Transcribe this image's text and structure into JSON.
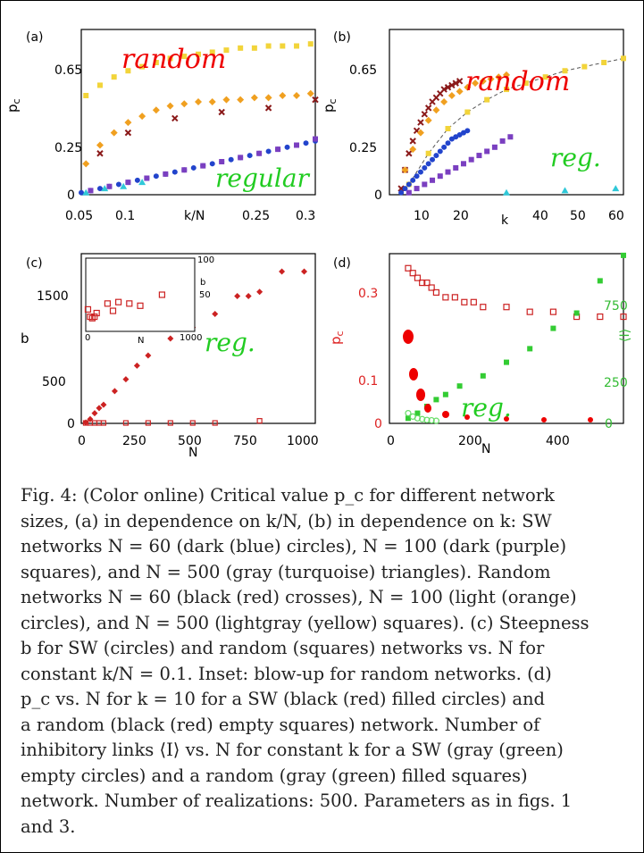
{
  "figure": {
    "panels": {
      "a": {
        "label": "(a)",
        "ylabel": "p",
        "ylabel_sub": "c",
        "xlabel": "k/N",
        "yticks": [
          "0.65",
          "0.25",
          "0"
        ],
        "xticks": [
          "0.05",
          "0.1",
          "0.25",
          "0.3"
        ]
      },
      "b": {
        "label": "(b)",
        "ylabel": "p",
        "ylabel_sub": "c",
        "xlabel": "k",
        "yticks": [
          "0.65",
          "0.25",
          "0"
        ],
        "xticks": [
          "10",
          "20",
          "40",
          "50",
          "60"
        ]
      },
      "c": {
        "label": "(c)",
        "ylabel": "b",
        "xlabel": "N",
        "yticks": [
          "1500",
          "500",
          "0"
        ],
        "xticks": [
          "0",
          "250",
          "500",
          "750",
          "1000"
        ],
        "inset": {
          "xlabel": "N",
          "ylabel": "b",
          "yticks": [
            "100",
            "50",
            "0"
          ],
          "xticks": [
            "0",
            "1000"
          ]
        }
      },
      "d": {
        "label": "(d)",
        "ylabel": "p",
        "ylabel_sub": "c",
        "y2label": "⟨I⟩",
        "xlabel": "N",
        "yticks": [
          "0.3",
          "0.1",
          "0"
        ],
        "y2ticks": [
          "750",
          "250",
          "0"
        ],
        "xticks": [
          "0",
          "200",
          "400"
        ]
      }
    },
    "annotations": {
      "a_random": "random",
      "a_regular": "regular",
      "b_random": "random",
      "b_reg": "reg.",
      "c_reg": "reg.",
      "d_reg": "reg."
    }
  },
  "chart_data": [
    {
      "panel": "a",
      "type": "scatter",
      "xlabel": "k/N",
      "ylabel": "p_c",
      "xlim": [
        0.05,
        0.3
      ],
      "ylim": [
        0,
        0.8
      ],
      "series": [
        {
          "marker": "square",
          "color": "#f2d43a",
          "x": [
            0.055,
            0.07,
            0.085,
            0.1,
            0.115,
            0.13,
            0.145,
            0.16,
            0.175,
            0.19,
            0.205,
            0.22,
            0.235,
            0.25,
            0.265,
            0.28,
            0.295
          ],
          "y": [
            0.48,
            0.53,
            0.57,
            0.6,
            0.62,
            0.64,
            0.66,
            0.67,
            0.68,
            0.69,
            0.7,
            0.71,
            0.71,
            0.72,
            0.72,
            0.72,
            0.73
          ]
        },
        {
          "marker": "diamond",
          "color": "#f0a020",
          "x": [
            0.055,
            0.07,
            0.085,
            0.1,
            0.115,
            0.13,
            0.145,
            0.16,
            0.175,
            0.19,
            0.205,
            0.22,
            0.235,
            0.25,
            0.265,
            0.28,
            0.295
          ],
          "y": [
            0.15,
            0.24,
            0.3,
            0.35,
            0.38,
            0.41,
            0.43,
            0.44,
            0.45,
            0.45,
            0.46,
            0.46,
            0.47,
            0.47,
            0.48,
            0.48,
            0.49
          ]
        },
        {
          "marker": "cross",
          "color": "#8b1a1a",
          "x": [
            0.07,
            0.1,
            0.15,
            0.2,
            0.25,
            0.3
          ],
          "y": [
            0.2,
            0.3,
            0.37,
            0.4,
            0.42,
            0.46
          ]
        },
        {
          "marker": "circle",
          "color": "#2244cc",
          "x": [
            0.05,
            0.06,
            0.07,
            0.08,
            0.09,
            0.1,
            0.11,
            0.12,
            0.13,
            0.14,
            0.15,
            0.16,
            0.17,
            0.18,
            0.19,
            0.2,
            0.21,
            0.22,
            0.23,
            0.24,
            0.25,
            0.26,
            0.27,
            0.28,
            0.29,
            0.3
          ],
          "y": [
            0.01,
            0.02,
            0.03,
            0.04,
            0.05,
            0.06,
            0.07,
            0.08,
            0.09,
            0.1,
            0.11,
            0.12,
            0.13,
            0.14,
            0.15,
            0.16,
            0.17,
            0.18,
            0.19,
            0.2,
            0.21,
            0.22,
            0.23,
            0.24,
            0.25,
            0.26
          ]
        },
        {
          "marker": "square",
          "color": "#7a3fc0",
          "x": [
            0.06,
            0.08,
            0.1,
            0.12,
            0.14,
            0.16,
            0.18,
            0.2,
            0.22,
            0.24,
            0.26,
            0.28,
            0.3
          ],
          "y": [
            0.02,
            0.04,
            0.06,
            0.08,
            0.1,
            0.12,
            0.14,
            0.16,
            0.18,
            0.2,
            0.22,
            0.24,
            0.27
          ]
        },
        {
          "marker": "triangle",
          "color": "#30c8d8",
          "x": [
            0.055,
            0.075,
            0.095,
            0.115
          ],
          "y": [
            0.01,
            0.03,
            0.04,
            0.06
          ]
        }
      ]
    },
    {
      "panel": "b",
      "type": "scatter",
      "xlabel": "k",
      "ylabel": "p_c",
      "xlim": [
        0,
        60
      ],
      "ylim": [
        0,
        0.8
      ],
      "series": [
        {
          "marker": "cross",
          "color": "#8b1a1a",
          "x": [
            3,
            4,
            5,
            6,
            7,
            8,
            9,
            10,
            11,
            12,
            13,
            14,
            15,
            16,
            17,
            18
          ],
          "y": [
            0.03,
            0.12,
            0.2,
            0.26,
            0.31,
            0.35,
            0.39,
            0.42,
            0.45,
            0.47,
            0.49,
            0.51,
            0.52,
            0.53,
            0.54,
            0.55
          ]
        },
        {
          "marker": "diamond",
          "color": "#f0a020",
          "x": [
            4,
            6,
            8,
            10,
            12,
            14,
            16,
            18,
            20,
            22,
            24,
            26,
            28,
            30
          ],
          "y": [
            0.12,
            0.22,
            0.3,
            0.36,
            0.41,
            0.45,
            0.48,
            0.5,
            0.52,
            0.54,
            0.55,
            0.56,
            0.57,
            0.58
          ]
        },
        {
          "marker": "square",
          "color": "#f2d43a",
          "x": [
            5,
            10,
            15,
            20,
            25,
            30,
            35,
            40,
            45,
            50,
            55,
            60
          ],
          "y": [
            0.05,
            0.2,
            0.32,
            0.4,
            0.46,
            0.51,
            0.54,
            0.57,
            0.6,
            0.62,
            0.64,
            0.66
          ]
        },
        {
          "marker": "circle",
          "color": "#2244cc",
          "x": [
            3,
            4,
            5,
            6,
            7,
            8,
            9,
            10,
            11,
            12,
            13,
            14,
            15,
            16,
            17,
            18,
            19,
            20
          ],
          "y": [
            0.01,
            0.03,
            0.05,
            0.07,
            0.09,
            0.11,
            0.13,
            0.15,
            0.17,
            0.19,
            0.21,
            0.23,
            0.25,
            0.27,
            0.28,
            0.29,
            0.3,
            0.31
          ]
        },
        {
          "marker": "square",
          "color": "#7a3fc0",
          "x": [
            5,
            7,
            9,
            11,
            13,
            15,
            17,
            19,
            21,
            23,
            25,
            27,
            29,
            31
          ],
          "y": [
            0.01,
            0.03,
            0.05,
            0.07,
            0.09,
            0.11,
            0.13,
            0.15,
            0.17,
            0.19,
            0.21,
            0.23,
            0.26,
            0.28
          ]
        },
        {
          "marker": "triangle",
          "color": "#30c8d8",
          "x": [
            30,
            45,
            58
          ],
          "y": [
            0.01,
            0.02,
            0.03
          ]
        }
      ]
    },
    {
      "panel": "c",
      "type": "scatter",
      "xlabel": "N",
      "ylabel": "b",
      "xlim": [
        0,
        1050
      ],
      "ylim": [
        0,
        2000
      ],
      "series": [
        {
          "marker": "diamond",
          "color": "#cc2222",
          "x": [
            20,
            40,
            60,
            80,
            100,
            150,
            200,
            250,
            300,
            400,
            500,
            600,
            700,
            750,
            800,
            900,
            1000
          ],
          "y": [
            10,
            50,
            120,
            180,
            220,
            380,
            520,
            680,
            800,
            1000,
            1130,
            1290,
            1500,
            1500,
            1550,
            1790,
            1790
          ]
        },
        {
          "marker": "open-square",
          "color": "#cc2222",
          "x": [
            20,
            40,
            60,
            80,
            100,
            200,
            300,
            400,
            500,
            600,
            800
          ],
          "y": [
            5,
            5,
            5,
            5,
            5,
            5,
            5,
            5,
            5,
            5,
            30
          ]
        }
      ],
      "inset": {
        "xlim": [
          0,
          1000
        ],
        "ylim": [
          0,
          100
        ],
        "series": [
          {
            "marker": "open-square",
            "color": "#cc2222",
            "x": [
              20,
              40,
              60,
              80,
              100,
              200,
              250,
              300,
              400,
              500,
              700
            ],
            "y": [
              30,
              20,
              18,
              20,
              25,
              38,
              28,
              40,
              38,
              35,
              50
            ]
          }
        ]
      }
    },
    {
      "panel": "d",
      "type": "scatter",
      "xlabel": "N",
      "ylabel": "p_c",
      "y2label": "⟨I⟩",
      "xlim": [
        0,
        500
      ],
      "ylim": [
        0,
        0.35
      ],
      "y2lim": [
        0,
        1000
      ],
      "series": [
        {
          "name": "",
          "axis": "left",
          "marker": "open-square",
          "color": "#cc2222",
          "x": [
            40,
            50,
            60,
            70,
            80,
            90,
            100,
            120,
            140,
            160,
            180,
            200,
            250,
            300,
            350,
            400,
            450,
            500
          ],
          "y": [
            0.32,
            0.31,
            0.3,
            0.29,
            0.29,
            0.28,
            0.27,
            0.26,
            0.26,
            0.25,
            0.25,
            0.24,
            0.24,
            0.23,
            0.23,
            0.22,
            0.22,
            0.22
          ]
        },
        {
          "axis": "right",
          "marker": "square",
          "color": "#33cc33",
          "x": [
            40,
            60,
            80,
            100,
            120,
            150,
            200,
            250,
            300,
            350,
            400,
            450,
            500
          ],
          "y": [
            30,
            60,
            100,
            140,
            170,
            220,
            280,
            360,
            440,
            560,
            650,
            840,
            990
          ]
        },
        {
          "axis": "right",
          "marker": "open-circle",
          "color": "#66dd66",
          "x": [
            40,
            50,
            60,
            70,
            80,
            90,
            100
          ],
          "y": [
            60,
            40,
            30,
            25,
            20,
            18,
            15
          ]
        }
      ]
    }
  ],
  "caption": {
    "lines": [
      "Fig. 4: (Color online) Critical value p_c for different network",
      "sizes, (a) in dependence on k/N, (b) in dependence on k: SW",
      "networks N = 60 (dark (blue) circles), N = 100 (dark (purple)",
      "squares), and N = 500 (gray (turquoise) triangles). Random",
      "networks N = 60 (black (red) crosses), N = 100 (light (orange)",
      "circles), and N = 500 (lightgray (yellow) squares). (c) Steepness",
      "b for SW (circles) and random (squares) networks vs. N for",
      "constant k/N = 0.1. Inset: blow-up for random networks. (d)",
      "p_c vs. N for k = 10 for a SW (black (red) filled circles) and",
      "a random (black (red) empty squares) network. Number of",
      "inhibitory links ⟨I⟩ vs. N for constant k for a SW (gray (green)",
      "empty circles) and a random (gray (green) filled squares)",
      "network. Number of realizations: 500. Parameters as in figs. 1",
      "and 3."
    ]
  }
}
